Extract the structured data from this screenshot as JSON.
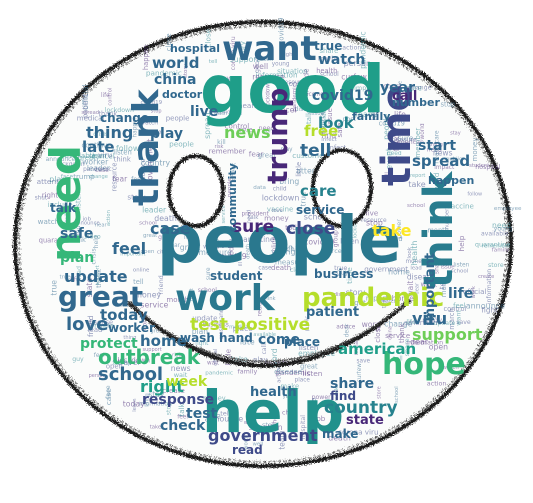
{
  "image": {
    "kind": "word-cloud",
    "shape": "smiley-face",
    "palette": [
      "#440154",
      "#482878",
      "#3e4a89",
      "#31688e",
      "#26828e",
      "#1f9e89",
      "#35b779",
      "#6ece58",
      "#b5de2b",
      "#fde725"
    ]
  },
  "words": {
    "good": "good",
    "people": "people",
    "help": "help",
    "need": "need",
    "want": "want",
    "think": "think",
    "thank": "thank",
    "time": "time",
    "trump": "trump",
    "work": "work",
    "pandemic": "pandemic",
    "great": "great",
    "hope": "hope",
    "test_positive": "test positive",
    "government": "government",
    "country": "country",
    "school": "school",
    "outbreak": "outbreak",
    "american": "american",
    "support": "support",
    "news": "news",
    "case": "case",
    "sure": "sure",
    "close": "close",
    "free": "free",
    "tell": "tell",
    "look": "look",
    "covid19": "covid19",
    "care": "care",
    "take": "take",
    "love": "love",
    "today": "today",
    "update": "update",
    "right": "right",
    "home": "home",
    "feel": "feel",
    "plan": "plan",
    "safe": "safe",
    "protect": "protect",
    "week": "week",
    "response": "response",
    "check": "check",
    "share": "share",
    "find": "find",
    "state": "state",
    "make": "make",
    "read": "read",
    "world": "world",
    "china": "china",
    "live": "live",
    "hospital": "hospital",
    "true": "true",
    "watch": "watch",
    "call": "call",
    "year": "year",
    "start": "start",
    "spread": "spread",
    "important": "important",
    "viru": "viru",
    "life": "life",
    "thing": "thing",
    "late": "late",
    "play": "play",
    "change": "change",
    "doctor": "doctor",
    "number": "number",
    "family": "family",
    "happen": "happen",
    "talk": "talk",
    "service": "service",
    "community": "community",
    "student": "student",
    "patient": "patient",
    "come": "come",
    "wash_hand": "wash hand",
    "place": "place",
    "business": "business",
    "worker": "worker",
    "health": "health",
    "quarantine": "quarantine",
    "infect": "infect",
    "test": "test",
    "wait": "wait",
    "fight": "fight",
    "information": "information",
    "social_distancing": "social distancing",
    "mean": "mean",
    "stay": "stay",
    "face": "face",
    "mask": "mask",
    "vaccine": "vaccine",
    "leader": "leader",
    "lockdown": "lockdown",
    "crisis": "crisis",
    "nurse": "nurse",
    "break": "break",
    "child": "child",
    "hour": "hour",
    "friend": "friend",
    "issue": "issue",
    "march": "march",
    "report": "report",
    "order": "order",
    "open": "open",
    "data": "data",
    "city": "city",
    "public": "public",
    "risk": "risk",
    "stop": "stop",
    "month": "month",
    "online": "online",
    "kill": "kill",
    "video": "video",
    "ready": "ready",
    "maybe": "maybe",
    "team": "team",
    "cancel": "cancel",
    "learn": "learn",
    "store": "store",
    "word": "word",
    "food": "food",
    "person": "person",
    "death": "death",
    "include": "include",
    "story": "story",
    "idea": "idea",
    "clean": "clean",
    "event": "event",
    "travel": "travel",
    "measure": "measure",
    "action": "action",
    "resource": "resource",
    "situation": "situation",
    "advice": "advice",
    "treat": "treat",
    "member": "member",
    "announce": "announce",
    "happy": "happy",
    "medical": "medical",
    "source": "source",
    "control": "control",
    "president": "president",
    "official": "official",
    "available": "available",
    "bring": "bring",
    "employee": "employee",
    "customer": "customer",
    "provide": "provide",
    "parent": "parent",
    "remember": "remember",
    "consider": "consider",
    "disease": "disease",
    "actually": "actually",
    "create": "create",
    "impact": "impact",
    "little": "little",
    "save": "save",
    "power": "power",
    "group": "group",
    "money": "money",
    "corona_viru": "corona viru",
    "health_care": "health care",
    "ill": "ill",
    "listen": "listen",
    "well": "well",
    "dear": "dear",
    "guy": "guy",
    "hear": "hear",
    "follow": "follow",
    "show": "show",
    "young": "young",
    "fear": "fear",
    "job": "job",
    "lead": "lead",
    "late_curfew": "curfew",
    "protection": "protection",
    "post": "post",
    "continue": "continue",
    "attention": "attention",
    "shut": "shut"
  }
}
